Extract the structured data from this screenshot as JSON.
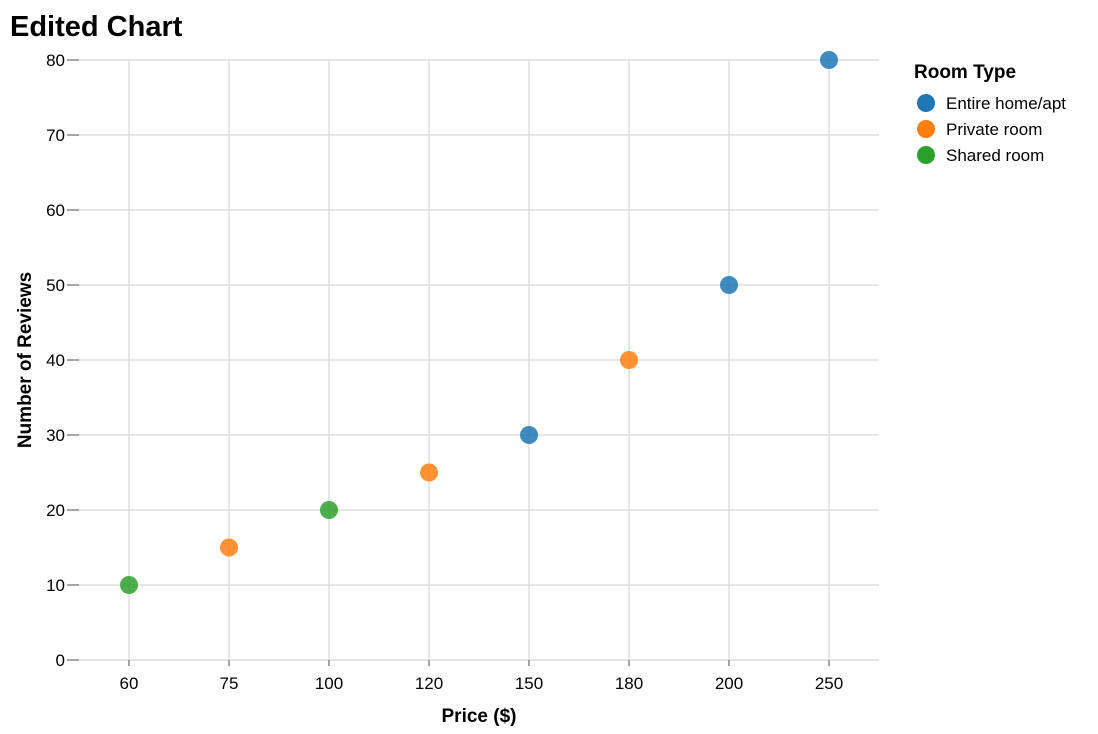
{
  "chart_data": {
    "type": "scatter",
    "title": "Edited Chart",
    "xlabel": "Price ($)",
    "ylabel": "Number of Reviews",
    "x_scale": "ordinal",
    "x_categories": [
      "60",
      "75",
      "100",
      "120",
      "150",
      "180",
      "200",
      "250"
    ],
    "ylim": [
      0,
      80
    ],
    "y_ticks": [
      0,
      10,
      20,
      30,
      40,
      50,
      60,
      70,
      80
    ],
    "grid": true,
    "legend": {
      "title": "Room Type",
      "placement": "right",
      "entries": [
        "Entire home/apt",
        "Private room",
        "Shared room"
      ]
    },
    "colors": {
      "Entire home/apt": "#1f77b4",
      "Private room": "#ff7f0e",
      "Shared room": "#2ca02c"
    },
    "points": [
      {
        "x": "60",
        "y": 10,
        "room_type": "Shared room"
      },
      {
        "x": "75",
        "y": 15,
        "room_type": "Private room"
      },
      {
        "x": "100",
        "y": 20,
        "room_type": "Shared room"
      },
      {
        "x": "120",
        "y": 25,
        "room_type": "Private room"
      },
      {
        "x": "150",
        "y": 30,
        "room_type": "Entire home/apt"
      },
      {
        "x": "180",
        "y": 40,
        "room_type": "Private room"
      },
      {
        "x": "200",
        "y": 50,
        "room_type": "Entire home/apt"
      },
      {
        "x": "250",
        "y": 80,
        "room_type": "Entire home/apt"
      }
    ]
  }
}
